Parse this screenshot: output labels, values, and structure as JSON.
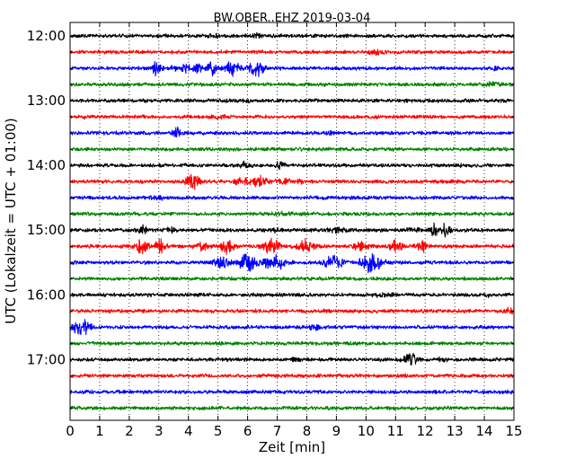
{
  "chart_data": {
    "type": "line",
    "title": "BW.OBER..EHZ 2019-03-04",
    "xlabel": "Zeit  [min]",
    "ylabel": "UTC (Lokalzeit = UTC + 01:00)",
    "xlim": [
      0,
      15
    ],
    "x_ticks": [
      "0",
      "1",
      "2",
      "3",
      "4",
      "5",
      "6",
      "7",
      "8",
      "9",
      "10",
      "11",
      "12",
      "13",
      "14",
      "15"
    ],
    "y_ticks": [
      "12:00",
      "13:00",
      "14:00",
      "15:00",
      "16:00",
      "17:00"
    ],
    "traces_per_hour": 4,
    "trace_start": "12:00",
    "trace_count": 24,
    "color_cycle": [
      "#000000",
      "#ff0000",
      "#0000ff",
      "#008000"
    ],
    "vertical_grid": "dotted",
    "traces": [
      {
        "time": "12:00",
        "bursts": [
          {
            "t": 4.9,
            "a": 0.4,
            "w": 0.1
          },
          {
            "t": 6.3,
            "a": 0.6,
            "w": 0.1
          }
        ]
      },
      {
        "time": "12:15",
        "bursts": [
          {
            "t": 10.4,
            "a": 0.4,
            "w": 0.2
          }
        ]
      },
      {
        "time": "12:30",
        "bursts": [
          {
            "t": 2.9,
            "a": 1.6,
            "w": 0.12
          },
          {
            "t": 3.5,
            "a": 0.5,
            "w": 0.1
          },
          {
            "t": 3.9,
            "a": 0.9,
            "w": 0.1
          },
          {
            "t": 4.3,
            "a": 1.0,
            "w": 0.1
          },
          {
            "t": 4.8,
            "a": 1.6,
            "w": 0.1
          },
          {
            "t": 5.5,
            "a": 1.7,
            "w": 0.15
          },
          {
            "t": 6.3,
            "a": 2.0,
            "w": 0.15
          },
          {
            "t": 14.4,
            "a": 0.7,
            "w": 0.06
          }
        ]
      },
      {
        "time": "12:45",
        "bursts": [
          {
            "t": 14.3,
            "a": 0.5,
            "w": 0.15
          }
        ]
      },
      {
        "time": "13:00",
        "bursts": [
          {
            "t": 5.9,
            "a": 0.3,
            "w": 0.1
          }
        ]
      },
      {
        "time": "13:15",
        "bursts": [
          {
            "t": 5.1,
            "a": 0.3,
            "w": 0.2
          }
        ]
      },
      {
        "time": "13:30",
        "bursts": [
          {
            "t": 3.6,
            "a": 1.4,
            "w": 0.08
          },
          {
            "t": 8.8,
            "a": 0.2,
            "w": 0.1
          }
        ]
      },
      {
        "time": "13:45",
        "bursts": []
      },
      {
        "time": "14:00",
        "bursts": [
          {
            "t": 5.9,
            "a": 0.9,
            "w": 0.1
          },
          {
            "t": 7.1,
            "a": 0.9,
            "w": 0.1
          },
          {
            "t": 13.2,
            "a": 0.3,
            "w": 0.05
          }
        ]
      },
      {
        "time": "14:15",
        "bursts": [
          {
            "t": 4.15,
            "a": 1.8,
            "w": 0.15
          },
          {
            "t": 5.8,
            "a": 1.0,
            "w": 0.15
          },
          {
            "t": 6.4,
            "a": 1.2,
            "w": 0.15
          },
          {
            "t": 7.2,
            "a": 0.5,
            "w": 0.2
          },
          {
            "t": 7.8,
            "a": 0.4,
            "w": 0.1
          }
        ]
      },
      {
        "time": "14:30",
        "bursts": [
          {
            "t": 3.0,
            "a": 0.3,
            "w": 0.2
          }
        ]
      },
      {
        "time": "14:45",
        "bursts": [
          {
            "t": 7.3,
            "a": 0.2,
            "w": 0.3
          }
        ]
      },
      {
        "time": "15:00",
        "bursts": [
          {
            "t": 2.5,
            "a": 1.0,
            "w": 0.15
          },
          {
            "t": 3.4,
            "a": 0.7,
            "w": 0.1
          },
          {
            "t": 7.0,
            "a": 0.6,
            "w": 0.1
          },
          {
            "t": 9.0,
            "a": 0.5,
            "w": 0.2
          },
          {
            "t": 11.6,
            "a": 0.5,
            "w": 0.2
          },
          {
            "t": 12.3,
            "a": 1.4,
            "w": 0.1
          },
          {
            "t": 12.7,
            "a": 1.3,
            "w": 0.1
          }
        ]
      },
      {
        "time": "15:15",
        "bursts": [
          {
            "t": 2.4,
            "a": 1.5,
            "w": 0.15
          },
          {
            "t": 3.0,
            "a": 1.4,
            "w": 0.15
          },
          {
            "t": 4.5,
            "a": 1.0,
            "w": 0.15
          },
          {
            "t": 5.3,
            "a": 1.3,
            "w": 0.15
          },
          {
            "t": 6.8,
            "a": 1.6,
            "w": 0.2
          },
          {
            "t": 8.0,
            "a": 1.4,
            "w": 0.2
          },
          {
            "t": 9.8,
            "a": 0.8,
            "w": 0.2
          },
          {
            "t": 11.0,
            "a": 1.3,
            "w": 0.15
          },
          {
            "t": 11.9,
            "a": 1.0,
            "w": 0.15
          }
        ]
      },
      {
        "time": "15:30",
        "bursts": [
          {
            "t": 5.1,
            "a": 1.4,
            "w": 0.2
          },
          {
            "t": 6.0,
            "a": 1.7,
            "w": 0.2
          },
          {
            "t": 6.9,
            "a": 2.0,
            "w": 0.25
          },
          {
            "t": 8.9,
            "a": 1.8,
            "w": 0.2
          },
          {
            "t": 10.2,
            "a": 2.0,
            "w": 0.25
          }
        ]
      },
      {
        "time": "15:45",
        "bursts": []
      },
      {
        "time": "16:00",
        "bursts": [
          {
            "t": 10.6,
            "a": 0.3,
            "w": 0.2
          },
          {
            "t": 14.1,
            "a": 0.4,
            "w": 0.05
          }
        ]
      },
      {
        "time": "16:15",
        "bursts": [
          {
            "t": 14.9,
            "a": 0.5,
            "w": 0.15
          }
        ]
      },
      {
        "time": "16:30",
        "bursts": [
          {
            "t": 0.4,
            "a": 1.7,
            "w": 0.2
          },
          {
            "t": 8.3,
            "a": 0.5,
            "w": 0.15
          }
        ]
      },
      {
        "time": "16:45",
        "bursts": []
      },
      {
        "time": "17:00",
        "bursts": [
          {
            "t": 7.6,
            "a": 0.4,
            "w": 0.1
          },
          {
            "t": 11.5,
            "a": 1.6,
            "w": 0.15
          },
          {
            "t": 12.6,
            "a": 0.5,
            "w": 0.1
          }
        ]
      },
      {
        "time": "17:15",
        "bursts": []
      },
      {
        "time": "17:30",
        "bursts": [
          {
            "t": 12.7,
            "a": 0.5,
            "w": 0.03
          }
        ]
      },
      {
        "time": "17:45",
        "bursts": []
      }
    ]
  }
}
